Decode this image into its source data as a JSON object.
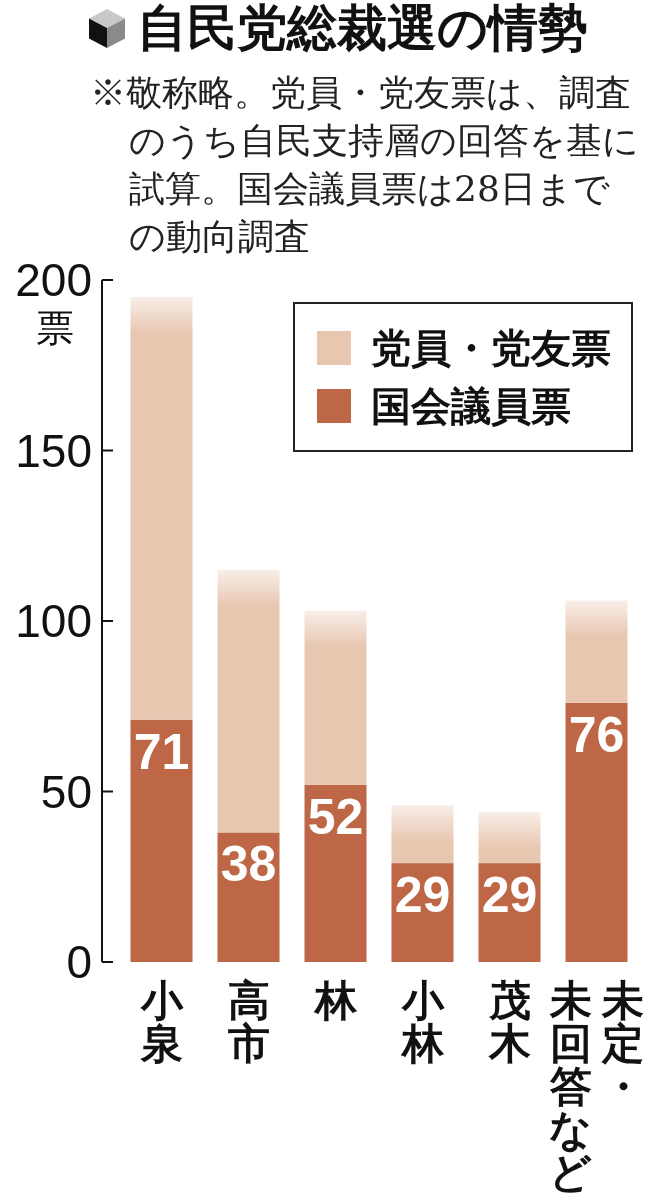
{
  "chart_data": {
    "type": "bar",
    "title": "自民党総裁選の情勢",
    "subtitle": "※敬称略。党員・党友票は、調査のうち自民支持層の回答を基に試算。国会議員票は28日までの動向調査",
    "ylabel": "票",
    "categories": [
      "小泉",
      "高市",
      "林",
      "小林",
      "茂木",
      "未定・未回答など"
    ],
    "stacked": true,
    "series": [
      {
        "name": "国会議員票",
        "color": "#bd6747",
        "values": [
          71,
          38,
          52,
          29,
          29,
          76
        ],
        "value_labels": [
          "71",
          "38",
          "52",
          "29",
          "29",
          "76"
        ]
      },
      {
        "name": "党員・党友票",
        "color": "#e8c7b1",
        "values": [
          124,
          77,
          51,
          17,
          15,
          30
        ]
      }
    ],
    "ylim": [
      0,
      200
    ],
    "yticks": [
      0,
      50,
      100,
      150,
      200
    ],
    "legend": "top right"
  }
}
